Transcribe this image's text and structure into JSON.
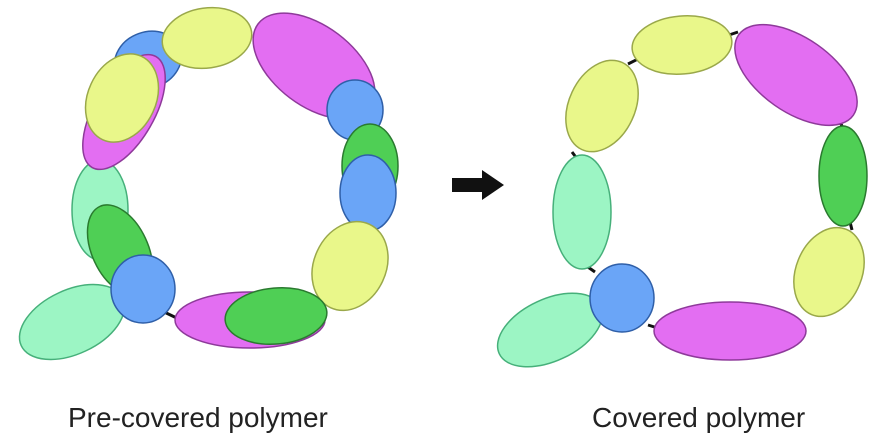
{
  "captions": {
    "left": "Pre-covered polymer",
    "right": "Covered polymer"
  },
  "colors": {
    "yellow": "#e9f78a",
    "magenta": "#e36ef2",
    "blue": "#6aa5f7",
    "green": "#4fcf55",
    "mint": "#9cf5c4",
    "arrow": "#111111",
    "link": "#111111"
  },
  "icons": [
    "right-arrow-icon"
  ]
}
